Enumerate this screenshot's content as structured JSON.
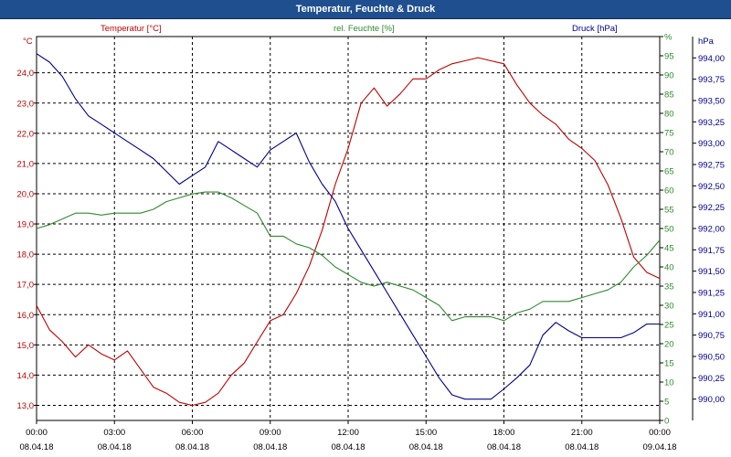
{
  "window": {
    "title": "Temperatur, Feuchte & Druck"
  },
  "colors": {
    "temperature": "#c00000",
    "humidity": "#2e8b2e",
    "pressure": "#00008b",
    "grid": "#000000",
    "axis_text": "#000000",
    "background": "#ffffff",
    "titlebar": "#1f4f8f"
  },
  "chart_data": {
    "type": "line",
    "grid": true,
    "x_ticks": [
      {
        "time": "00:00",
        "date": "08.04.18"
      },
      {
        "time": "03:00",
        "date": "08.04.18"
      },
      {
        "time": "06:00",
        "date": "08.04.18"
      },
      {
        "time": "09:00",
        "date": "08.04.18"
      },
      {
        "time": "12:00",
        "date": "08.04.18"
      },
      {
        "time": "15:00",
        "date": "08.04.18"
      },
      {
        "time": "18:00",
        "date": "08.04.18"
      },
      {
        "time": "21:00",
        "date": "08.04.18"
      },
      {
        "time": "00:00",
        "date": "09.04.18"
      }
    ],
    "axes": {
      "left": {
        "unit": "°C",
        "ylim": [
          12.5,
          25.2
        ],
        "ticks": [
          "13,0",
          "14,0",
          "15,0",
          "16,0",
          "17,0",
          "18,0",
          "19,0",
          "20,0",
          "21,0",
          "22,0",
          "23,0",
          "24,0"
        ]
      },
      "mid": {
        "unit": "%",
        "ylim": [
          0,
          100
        ],
        "ticks": [
          "0",
          "5",
          "10",
          "15",
          "20",
          "25",
          "30",
          "35",
          "40",
          "45",
          "50",
          "55",
          "60",
          "65",
          "70",
          "75",
          "80",
          "85",
          "90",
          "95",
          "%"
        ]
      },
      "right": {
        "unit": "hPa",
        "ylim": [
          989.75,
          994.25
        ],
        "ticks": [
          "990,00",
          "990,25",
          "990,50",
          "990,75",
          "991,00",
          "991,25",
          "991,50",
          "991,75",
          "992,00",
          "992,25",
          "992,50",
          "992,75",
          "993,00",
          "993,25",
          "993,50",
          "993,75",
          "994,00"
        ]
      }
    },
    "series": [
      {
        "name": "Temperatur [°C]",
        "axis": "left",
        "x_hours": [
          0,
          0.5,
          1,
          1.5,
          2,
          2.5,
          3,
          3.5,
          4,
          4.5,
          5,
          5.5,
          6,
          6.5,
          7,
          7.5,
          8,
          8.5,
          9,
          9.5,
          10,
          10.5,
          11,
          11.5,
          12,
          12.5,
          13,
          13.5,
          14,
          14.5,
          15,
          15.5,
          16,
          16.5,
          17,
          17.5,
          18,
          18.5,
          19,
          19.5,
          20,
          20.5,
          21,
          21.5,
          22,
          22.5,
          23,
          23.5,
          24
        ],
        "values": [
          16.3,
          15.5,
          15.1,
          14.6,
          15.0,
          14.7,
          14.5,
          14.8,
          14.2,
          13.6,
          13.4,
          13.1,
          13.0,
          13.1,
          13.4,
          14.0,
          14.4,
          15.1,
          15.8,
          16.0,
          16.7,
          17.6,
          18.8,
          20.3,
          21.5,
          23.0,
          23.5,
          22.9,
          23.3,
          23.8,
          23.8,
          24.1,
          24.3,
          24.4,
          24.5,
          24.4,
          24.3,
          23.6,
          23.0,
          22.6,
          22.3,
          21.8,
          21.5,
          21.1,
          20.3,
          19.2,
          17.9,
          17.4,
          17.2
        ]
      },
      {
        "name": "rel. Feuchte [%]",
        "axis": "mid",
        "x_hours": [
          0,
          0.5,
          1,
          1.5,
          2,
          2.5,
          3,
          3.5,
          4,
          4.5,
          5,
          5.5,
          6,
          6.5,
          7,
          7.5,
          8,
          8.5,
          9,
          9.5,
          10,
          10.5,
          11,
          11.5,
          12,
          12.5,
          13,
          13.5,
          14,
          14.5,
          15,
          15.5,
          16,
          16.5,
          17,
          17.5,
          18,
          18.5,
          19,
          19.5,
          20,
          20.5,
          21,
          21.5,
          22,
          22.5,
          23,
          23.5,
          24
        ],
        "values": [
          50,
          51,
          52.5,
          54,
          54,
          53.5,
          54,
          54,
          54,
          55,
          57,
          58,
          59,
          59.5,
          59.5,
          58,
          56,
          54,
          48,
          48,
          46,
          45,
          43,
          40,
          38,
          36,
          35,
          36,
          35,
          34,
          32,
          30,
          26,
          27,
          27,
          27,
          26,
          28,
          29,
          31,
          31,
          31,
          32,
          33,
          34,
          36,
          40,
          43,
          47
        ]
      },
      {
        "name": "Druck [hPa]",
        "axis": "right",
        "x_hours": [
          0,
          0.5,
          1,
          1.5,
          2,
          2.5,
          3,
          3.5,
          4,
          4.5,
          5,
          5.5,
          6,
          6.5,
          7,
          7.5,
          8,
          8.5,
          9,
          9.5,
          10,
          10.5,
          11,
          11.5,
          12,
          12.5,
          13,
          13.5,
          14,
          14.5,
          15,
          15.5,
          16,
          16.5,
          17,
          17.5,
          18,
          18.5,
          19,
          19.5,
          20,
          20.5,
          21,
          21.5,
          22,
          22.5,
          23,
          23.5,
          24
        ],
        "values": [
          994.05,
          993.95,
          993.78,
          993.52,
          993.32,
          993.22,
          993.12,
          993.02,
          992.92,
          992.82,
          992.67,
          992.52,
          992.62,
          992.72,
          993.02,
          992.92,
          992.82,
          992.72,
          992.92,
          993.02,
          993.12,
          992.78,
          992.52,
          992.32,
          992.0,
          991.75,
          991.5,
          991.25,
          991.0,
          990.75,
          990.5,
          990.25,
          990.05,
          990.0,
          990.0,
          990.0,
          990.12,
          990.25,
          990.4,
          990.75,
          990.9,
          990.8,
          990.72,
          990.72,
          990.72,
          990.72,
          990.78,
          990.88,
          990.88
        ]
      }
    ]
  }
}
